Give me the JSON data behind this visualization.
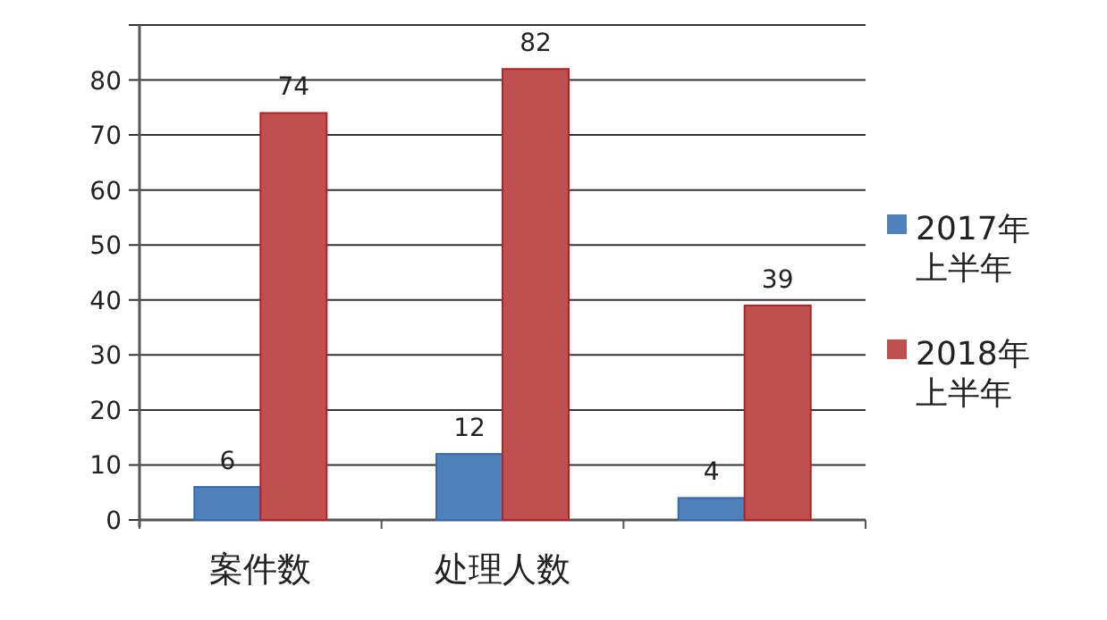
{
  "chart_data": {
    "type": "bar",
    "categories": [
      "案件数",
      "处理人数",
      null
    ],
    "series": [
      {
        "name": "2017年上半年",
        "color": "#4f81bd",
        "values": [
          6,
          12,
          4
        ]
      },
      {
        "name": "2018年上半年",
        "color": "#c0504d",
        "values": [
          74,
          82,
          39
        ]
      }
    ],
    "ylim": [
      0,
      90
    ],
    "yticks": [
      0,
      10,
      20,
      30,
      40,
      50,
      60,
      70,
      80,
      {
        "value": 90,
        "label": null
      }
    ],
    "grid": true,
    "legend": "right",
    "data_labels": true
  }
}
